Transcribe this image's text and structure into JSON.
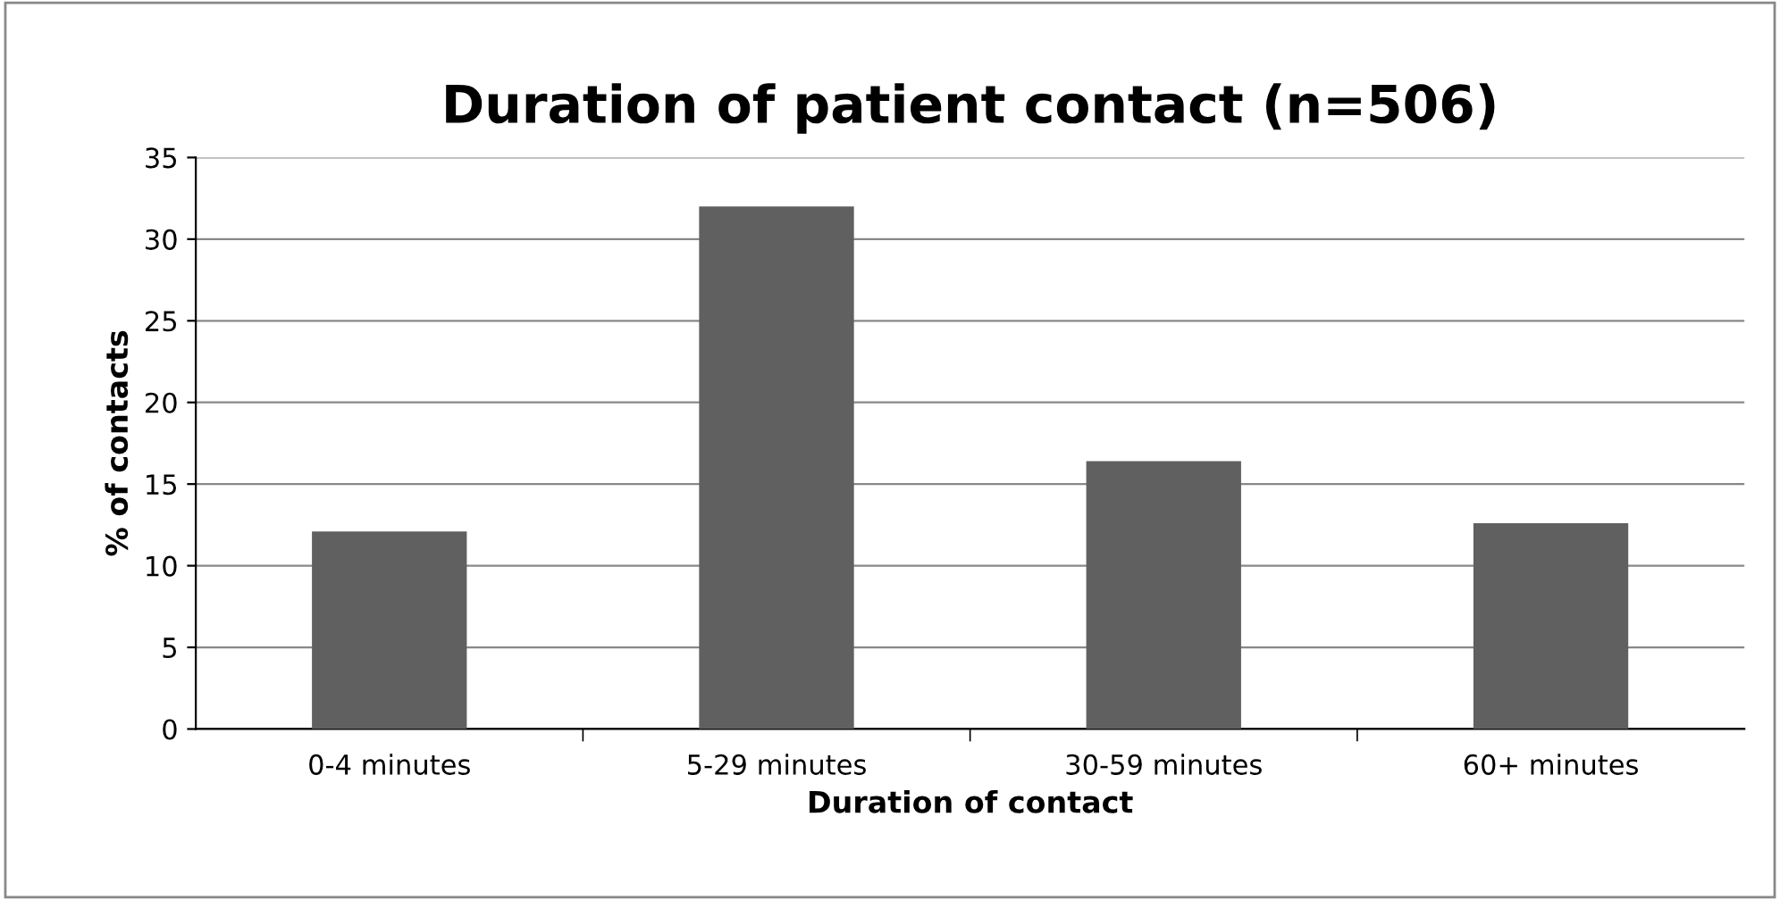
{
  "chart_data": {
    "type": "bar",
    "title": "Duration of patient contact (n=506)",
    "xlabel": "Duration of contact",
    "ylabel": "% of contacts",
    "categories": [
      "0-4 minutes",
      "5-29 minutes",
      "30-59 minutes",
      "60+ minutes"
    ],
    "values": [
      12.1,
      32,
      16.4,
      12.6
    ],
    "color": "#606060",
    "ylim": [
      0,
      35
    ],
    "yticks": [
      0,
      5,
      10,
      15,
      20,
      25,
      30,
      35
    ],
    "grid": "y",
    "legend": false
  }
}
